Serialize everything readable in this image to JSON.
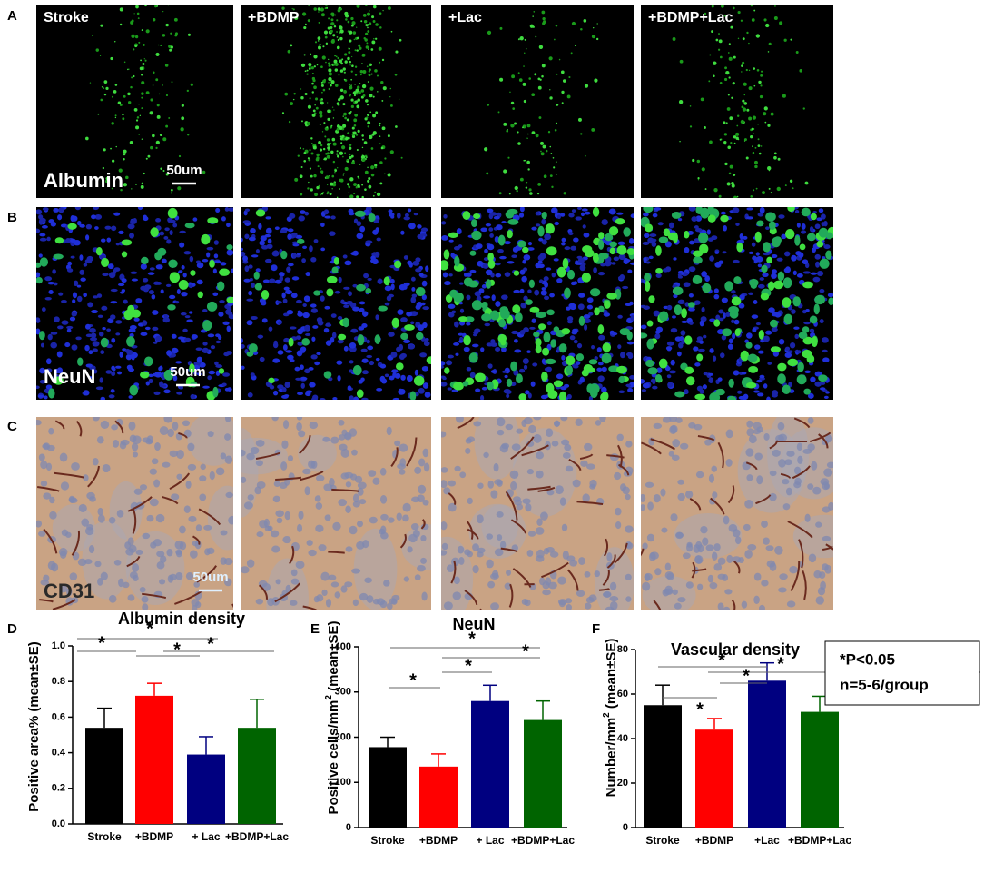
{
  "figure": {
    "panel_labels": [
      "A",
      "B",
      "C",
      "D",
      "E",
      "F"
    ],
    "groups": [
      "Stroke",
      "+BDMP",
      "+Lac",
      "+BDMP+Lac"
    ],
    "rows": [
      {
        "marker": "Albumin",
        "scale": "50um"
      },
      {
        "marker": "NeuN",
        "scale": "50um"
      },
      {
        "marker": "CD31",
        "scale": "50um"
      }
    ],
    "note": [
      "*P<0.05",
      "n=5-6/group"
    ]
  },
  "chart_data": [
    {
      "type": "bar",
      "title": "Albumin density",
      "ylabel": "Positive area% (mean±SE)",
      "categories": [
        "Stroke",
        "+BDMP",
        "+ Lac",
        "+BDMP+Lac"
      ],
      "values": [
        0.54,
        0.72,
        0.39,
        0.54
      ],
      "errors": [
        0.11,
        0.07,
        0.1,
        0.16
      ],
      "colors": [
        "#000000",
        "#ff0000",
        "#000080",
        "#006400"
      ],
      "ylim": [
        0,
        1
      ],
      "yticks": [
        {
          "value": 0,
          "label": "0.0"
        },
        0.2,
        0.4,
        0.6,
        0.8,
        {
          "value": 1,
          "label": "1.0"
        }
      ],
      "significance": [
        "*",
        "*",
        "*",
        "*"
      ]
    },
    {
      "type": "bar",
      "title": "NeuN",
      "ylabel": "Positive cells/mm",
      "ylabel_sup": "2",
      "ylabel_tail": " (mean±SE)",
      "categories": [
        "Stroke",
        "+BDMP",
        "+ Lac",
        "+BDMP+Lac"
      ],
      "values": [
        178,
        135,
        280,
        238
      ],
      "errors": [
        22,
        28,
        35,
        42
      ],
      "colors": [
        "#000000",
        "#ff0000",
        "#000080",
        "#006400"
      ],
      "ylim": [
        0,
        400
      ],
      "yticks": [
        0,
        100,
        200,
        300,
        400
      ],
      "significance": [
        "*",
        "*",
        "*",
        "*"
      ]
    },
    {
      "type": "bar",
      "title": "Vascular density",
      "ylabel": "Number/mm",
      "ylabel_sup": "2",
      "ylabel_tail": " (mean±SE)",
      "categories": [
        "Stroke",
        "+BDMP",
        "+Lac",
        "+BDMP+Lac"
      ],
      "values": [
        55,
        44,
        66,
        52
      ],
      "errors": [
        9,
        5,
        8,
        7
      ],
      "colors": [
        "#000000",
        "#ff0000",
        "#000080",
        "#006400"
      ],
      "ylim": [
        0,
        80
      ],
      "yticks": [
        0,
        20,
        40,
        60,
        80
      ],
      "significance": [
        "*",
        "*",
        "*",
        "*"
      ]
    }
  ]
}
